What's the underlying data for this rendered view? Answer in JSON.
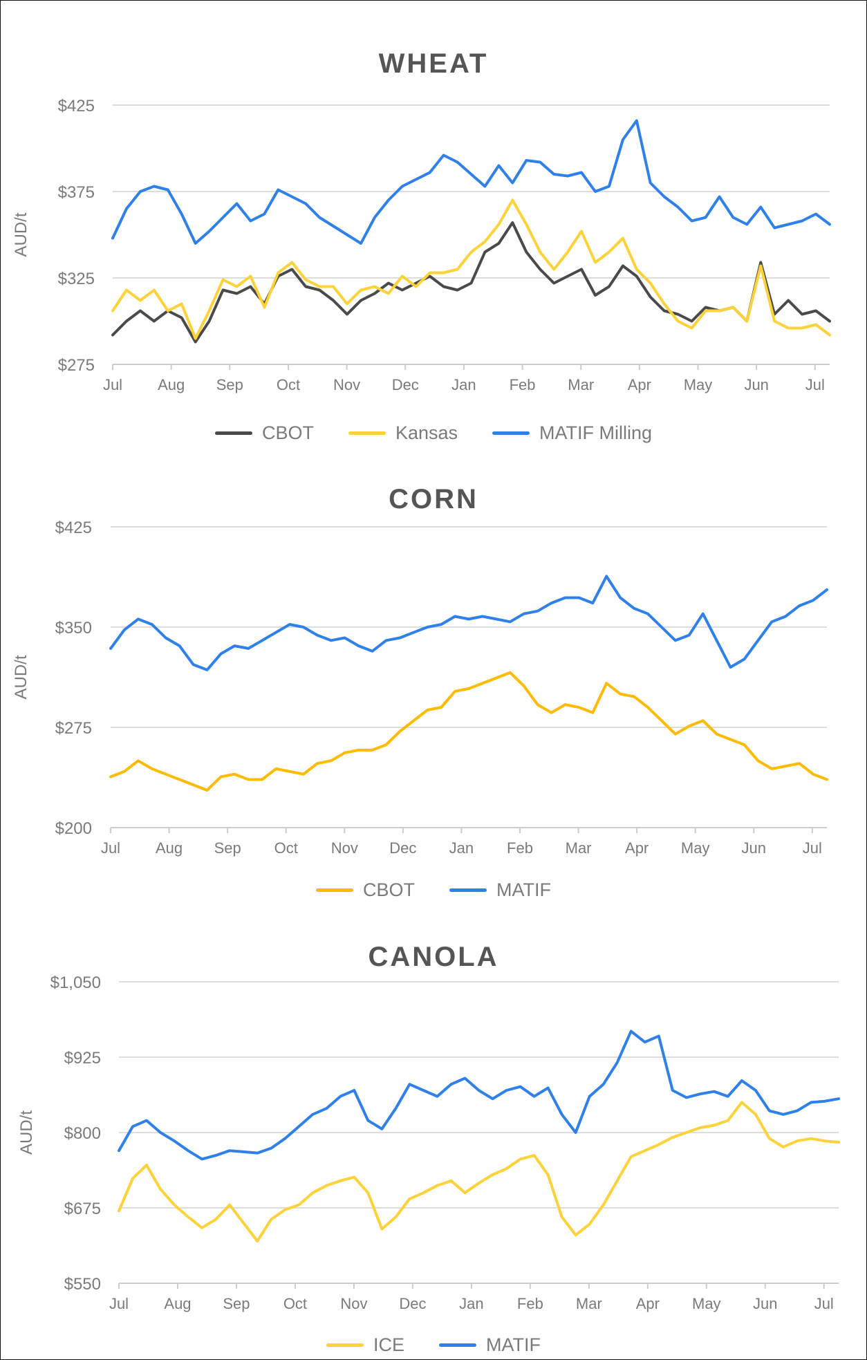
{
  "page": {
    "months": [
      "Jul",
      "Aug",
      "Sep",
      "Oct",
      "Nov",
      "Dec",
      "Jan",
      "Feb",
      "Mar",
      "Apr",
      "May",
      "Jun",
      "Jul"
    ]
  },
  "chart_data": [
    {
      "type": "line",
      "title": "WHEAT",
      "xlabel": "",
      "ylabel": "AUD/t",
      "ylim": [
        275,
        425
      ],
      "yticks": [
        275,
        325,
        375,
        425
      ],
      "ytick_labels": [
        "$275",
        "$325",
        "$375",
        "$425"
      ],
      "x_tick_labels": [
        "Jul",
        "Aug",
        "Sep",
        "Oct",
        "Nov",
        "Dec",
        "Jan",
        "Feb",
        "Mar",
        "Apr",
        "May",
        "Jun",
        "Jul"
      ],
      "x_note": "values sampled weekly (4 per month) from July to early July of following year",
      "grid": true,
      "legend_position": "bottom",
      "series": [
        {
          "name": "CBOT",
          "color": "#4a4a4a",
          "values": [
            292,
            300,
            306,
            300,
            306,
            302,
            288,
            300,
            318,
            316,
            320,
            310,
            326,
            330,
            320,
            318,
            312,
            304,
            312,
            316,
            322,
            318,
            322,
            326,
            320,
            318,
            322,
            340,
            345,
            357,
            340,
            330,
            322,
            326,
            330,
            315,
            320,
            332,
            326,
            314,
            306,
            304,
            300,
            308,
            306,
            308,
            300,
            334,
            304,
            312,
            304,
            306,
            300
          ]
        },
        {
          "name": "Kansas",
          "color": "#fdd23a",
          "values": [
            306,
            318,
            312,
            318,
            306,
            310,
            290,
            306,
            324,
            320,
            326,
            308,
            328,
            334,
            324,
            320,
            320,
            310,
            318,
            320,
            316,
            326,
            320,
            328,
            328,
            330,
            340,
            346,
            356,
            370,
            356,
            340,
            330,
            340,
            352,
            334,
            340,
            348,
            330,
            322,
            310,
            300,
            296,
            306,
            306,
            308,
            300,
            332,
            300,
            296,
            296,
            298,
            292
          ]
        },
        {
          "name": "MATIF Milling",
          "color": "#2f80e8",
          "values": [
            348,
            365,
            375,
            378,
            376,
            362,
            345,
            352,
            360,
            368,
            358,
            362,
            376,
            372,
            368,
            360,
            355,
            350,
            345,
            360,
            370,
            378,
            382,
            386,
            396,
            392,
            385,
            378,
            390,
            380,
            393,
            392,
            385,
            384,
            386,
            375,
            378,
            405,
            416,
            380,
            372,
            366,
            358,
            360,
            372,
            360,
            356,
            366,
            354,
            356,
            358,
            362,
            356
          ]
        }
      ]
    },
    {
      "type": "line",
      "title": "CORN",
      "xlabel": "",
      "ylabel": "AUD/t",
      "ylim": [
        200,
        425
      ],
      "yticks": [
        200,
        275,
        350,
        425
      ],
      "ytick_labels": [
        "$200",
        "$275",
        "$350",
        "$425"
      ],
      "x_tick_labels": [
        "Jul",
        "Aug",
        "Sep",
        "Oct",
        "Nov",
        "Dec",
        "Jan",
        "Feb",
        "Mar",
        "Apr",
        "May",
        "Jun",
        "Jul"
      ],
      "grid": true,
      "legend_position": "bottom",
      "series": [
        {
          "name": "CBOT",
          "color": "#ffbb00",
          "values": [
            238,
            242,
            250,
            244,
            240,
            236,
            232,
            228,
            238,
            240,
            236,
            236,
            244,
            242,
            240,
            248,
            250,
            256,
            258,
            258,
            262,
            272,
            280,
            288,
            290,
            302,
            304,
            308,
            312,
            316,
            306,
            292,
            286,
            292,
            290,
            286,
            308,
            300,
            298,
            290,
            280,
            270,
            276,
            280,
            270,
            266,
            262,
            250,
            244,
            246,
            248,
            240,
            236
          ]
        },
        {
          "name": "MATIF",
          "color": "#2f80e8",
          "values": [
            334,
            348,
            356,
            352,
            342,
            336,
            322,
            318,
            330,
            336,
            334,
            340,
            346,
            352,
            350,
            344,
            340,
            342,
            336,
            332,
            340,
            342,
            346,
            350,
            352,
            358,
            356,
            358,
            356,
            354,
            360,
            362,
            368,
            372,
            372,
            368,
            388,
            372,
            364,
            360,
            350,
            340,
            344,
            360,
            340,
            320,
            326,
            340,
            354,
            358,
            366,
            370,
            378
          ]
        }
      ]
    },
    {
      "type": "line",
      "title": "CANOLA",
      "xlabel": "",
      "ylabel": "AUD/t",
      "ylim": [
        550,
        1050
      ],
      "yticks": [
        550,
        675,
        800,
        925,
        1050
      ],
      "ytick_labels": [
        "$550",
        "$675",
        "$800",
        "$925",
        "$1,050"
      ],
      "x_tick_labels": [
        "Jul",
        "Aug",
        "Sep",
        "Oct",
        "Nov",
        "Dec",
        "Jan",
        "Feb",
        "Mar",
        "Apr",
        "May",
        "Jun",
        "Jul"
      ],
      "grid": true,
      "legend_position": "bottom",
      "series": [
        {
          "name": "ICE",
          "color": "#fdd23a",
          "values": [
            670,
            724,
            746,
            706,
            680,
            660,
            642,
            656,
            680,
            650,
            620,
            656,
            672,
            680,
            700,
            712,
            720,
            726,
            700,
            640,
            660,
            690,
            700,
            712,
            720,
            700,
            716,
            730,
            740,
            756,
            762,
            730,
            660,
            630,
            648,
            680,
            720,
            760,
            770,
            780,
            792,
            800,
            808,
            812,
            820,
            850,
            830,
            790,
            776,
            786,
            790,
            786,
            784
          ]
        },
        {
          "name": "MATIF",
          "color": "#2f80e8",
          "values": [
            770,
            810,
            820,
            800,
            786,
            770,
            756,
            762,
            770,
            768,
            766,
            774,
            790,
            810,
            830,
            840,
            860,
            870,
            820,
            806,
            840,
            880,
            870,
            860,
            880,
            890,
            870,
            856,
            870,
            876,
            860,
            874,
            830,
            800,
            860,
            880,
            916,
            968,
            950,
            960,
            870,
            858,
            864,
            868,
            860,
            886,
            870,
            836,
            830,
            836,
            850,
            852,
            856
          ]
        }
      ]
    }
  ],
  "charts": [
    {
      "title": "WHEAT",
      "legend": [
        {
          "label": "CBOT",
          "color": "#4a4a4a"
        },
        {
          "label": "Kansas",
          "color": "#fdd23a"
        },
        {
          "label": "MATIF Milling",
          "color": "#2f80e8"
        }
      ]
    },
    {
      "title": "CORN",
      "legend": [
        {
          "label": "CBOT",
          "color": "#ffbb00"
        },
        {
          "label": "MATIF",
          "color": "#2f80e8"
        }
      ]
    },
    {
      "title": "CANOLA",
      "legend": [
        {
          "label": "ICE",
          "color": "#fdd23a"
        },
        {
          "label": "MATIF",
          "color": "#2f80e8"
        }
      ]
    }
  ],
  "colors": {
    "gridline": "#dddddd",
    "axis_text": "#7a7a7a",
    "title_text": "#555555"
  }
}
